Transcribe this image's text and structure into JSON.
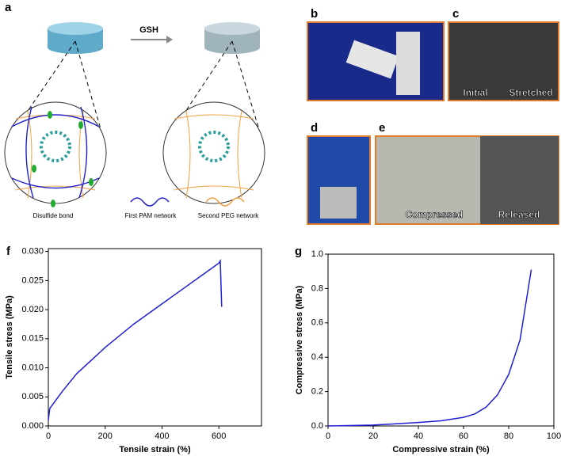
{
  "figure": {
    "panel_labels": [
      "a",
      "b",
      "c",
      "d",
      "e",
      "f",
      "g"
    ],
    "arrow_label": "GSH",
    "legend": [
      "Disulfide bond",
      "First PAM network",
      "Second PEG network"
    ],
    "photo_labels": [
      "Initial",
      "Stretched",
      "Compressed",
      "Released"
    ]
  },
  "chart_data": [
    {
      "type": "line",
      "x_label": "Tensile strain (%)",
      "y_label": "Tensile stress (MPa)",
      "xlim": [
        0,
        750
      ],
      "ylim": [
        0,
        0.0305
      ],
      "xticks": [
        0,
        200,
        400,
        600
      ],
      "yticks": [
        {
          "value": 0,
          "label": "0.000"
        },
        {
          "value": 0.005,
          "label": "0.005"
        },
        {
          "value": 0.01,
          "label": "0.010"
        },
        {
          "value": 0.015,
          "label": "0.015"
        },
        {
          "value": 0.02,
          "label": "0.020"
        },
        {
          "value": 0.025,
          "label": "0.025"
        },
        {
          "value": 0.03,
          "label": "0.030"
        }
      ],
      "x": [
        0,
        5,
        50,
        100,
        200,
        300,
        400,
        500,
        600,
        605,
        610
      ],
      "series": [
        {
          "color": "#1f1fd6",
          "values": [
            0.001,
            0.003,
            0.006,
            0.009,
            0.0135,
            0.0175,
            0.021,
            0.0245,
            0.028,
            0.0284,
            0.0205
          ]
        }
      ]
    },
    {
      "type": "line",
      "x_label": "Compressive strain (%)",
      "y_label": "Compressive stress (MPa)",
      "xlim": [
        0,
        100
      ],
      "ylim": [
        0,
        1.0
      ],
      "xticks": [
        0,
        20,
        40,
        60,
        80,
        100
      ],
      "yticks": [
        {
          "value": 0,
          "label": "0.0"
        },
        {
          "value": 0.2,
          "label": "0.2"
        },
        {
          "value": 0.4,
          "label": "0.4"
        },
        {
          "value": 0.6,
          "label": "0.6"
        },
        {
          "value": 0.8,
          "label": "0.8"
        },
        {
          "value": 1.0,
          "label": "1.0"
        }
      ],
      "x": [
        0,
        20,
        40,
        50,
        60,
        65,
        70,
        75,
        80,
        85,
        90
      ],
      "series": [
        {
          "color": "#1f1fd6",
          "values": [
            0,
            0.005,
            0.02,
            0.03,
            0.05,
            0.07,
            0.11,
            0.18,
            0.3,
            0.5,
            0.91
          ]
        }
      ]
    }
  ]
}
